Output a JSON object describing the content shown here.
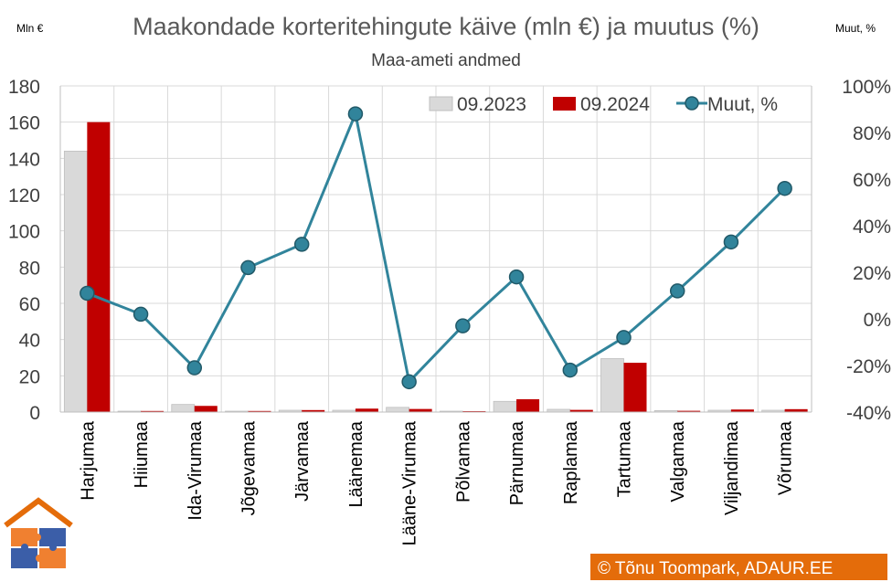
{
  "chart_data": {
    "type": "bar",
    "title": "Maakondade korteritehingute käive (mln €) ja muutus (%)",
    "subtitle": "Maa-ameti andmed",
    "ylabel_left": "Mln €",
    "ylabel_right": "Muut, %",
    "ylim_left": [
      0,
      180
    ],
    "ylim_right": [
      -40,
      100
    ],
    "left_ticks": [
      "0",
      "20",
      "40",
      "60",
      "80",
      "100",
      "120",
      "140",
      "160",
      "180"
    ],
    "right_ticks": [
      "-40%",
      "-20%",
      "0%",
      "20%",
      "40%",
      "60%",
      "80%",
      "100%"
    ],
    "categories": [
      "Harjumaa",
      "Hiiumaa",
      "Ida-Virumaa",
      "Jõgevamaa",
      "Järvamaa",
      "Läänemaa",
      "Lääne-Virumaa",
      "Põlvamaa",
      "Pärnumaa",
      "Raplamaa",
      "Tartumaa",
      "Valgamaa",
      "Viljandimaa",
      "Võrumaa"
    ],
    "series": [
      {
        "name": "09.2023",
        "type": "bar",
        "axis": "left",
        "color": "#d9d9d9",
        "values": [
          144,
          0.5,
          4.2,
          0.5,
          1.0,
          1.0,
          2.6,
          0.5,
          5.9,
          1.5,
          29.5,
          0.8,
          1.0,
          1.0
        ]
      },
      {
        "name": "09.2024",
        "type": "bar",
        "axis": "left",
        "color": "#c00000",
        "values": [
          160,
          0.6,
          3.4,
          0.6,
          1.1,
          1.9,
          1.7,
          0.5,
          7.1,
          1.2,
          27.2,
          0.7,
          1.4,
          1.6
        ]
      },
      {
        "name": "Muut, %",
        "type": "line",
        "axis": "right",
        "color": "#31849b",
        "values": [
          11,
          2,
          -21,
          22,
          32,
          88,
          -27,
          -3,
          18,
          -22,
          -8,
          12,
          33,
          56
        ]
      }
    ],
    "grid": true,
    "legend_position": "top-right"
  },
  "credit": "© Tõnu Toompark, ADAUR.EE",
  "logo_colors": {
    "roof": "#e46c0a",
    "piece_orange": "#f08030",
    "piece_blue": "#3b5ea8"
  }
}
